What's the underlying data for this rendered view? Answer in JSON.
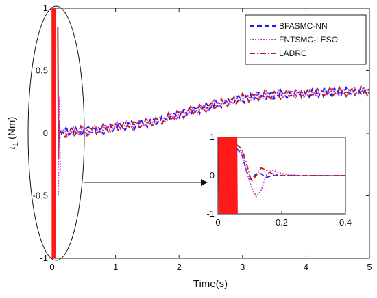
{
  "chart_data": {
    "type": "line",
    "xlabel": "Time(s)",
    "ylabel_main": "τ",
    "ylabel_sub": "1",
    "ylabel_unit": " (Nm)",
    "xlim": [
      0,
      5
    ],
    "ylim": [
      -1,
      1
    ],
    "xticks": [
      "0",
      "1",
      "2",
      "3",
      "4",
      "5"
    ],
    "yticks": [
      "-1",
      "-0.5",
      "0",
      "0.5",
      "1"
    ],
    "legend_position": "top-right",
    "series": [
      {
        "name": "BFASMC-NN",
        "color": "#1a1aff",
        "dash": "dashed",
        "x": [
          0.1,
          0.3,
          0.5,
          0.8,
          1.0,
          1.3,
          1.6,
          2.0,
          2.3,
          2.6,
          3.0,
          3.3,
          3.6,
          4.0,
          4.3,
          4.6,
          5.0
        ],
        "y": [
          0.0,
          0.01,
          0.02,
          0.03,
          0.05,
          0.07,
          0.09,
          0.15,
          0.19,
          0.23,
          0.28,
          0.3,
          0.31,
          0.32,
          0.33,
          0.33,
          0.34
        ]
      },
      {
        "name": "FNTSMC-LESO",
        "color": "#cc33cc",
        "dash": "dotted",
        "x": [
          0.1,
          0.3,
          0.5,
          0.8,
          1.0,
          1.3,
          1.6,
          2.0,
          2.3,
          2.6,
          3.0,
          3.3,
          3.6,
          4.0,
          4.3,
          4.6,
          5.0
        ],
        "y": [
          0.0,
          0.01,
          0.02,
          0.03,
          0.05,
          0.07,
          0.09,
          0.15,
          0.19,
          0.23,
          0.28,
          0.3,
          0.31,
          0.32,
          0.33,
          0.33,
          0.34
        ]
      },
      {
        "name": "LADRC",
        "color": "#b22222",
        "dash": "dashdot",
        "x": [
          0.1,
          0.3,
          0.5,
          0.8,
          1.0,
          1.3,
          1.6,
          2.0,
          2.3,
          2.6,
          3.0,
          3.3,
          3.6,
          4.0,
          4.3,
          4.6,
          5.0
        ],
        "y": [
          0.0,
          0.01,
          0.02,
          0.03,
          0.05,
          0.07,
          0.09,
          0.15,
          0.19,
          0.23,
          0.28,
          0.3,
          0.31,
          0.32,
          0.33,
          0.33,
          0.34
        ]
      }
    ],
    "inset": {
      "xlim": [
        0,
        0.4
      ],
      "ylim": [
        -1,
        1
      ],
      "xticks": [
        "0",
        "0.2",
        "0.4"
      ],
      "yticks": [
        "-1",
        "0",
        "1"
      ],
      "series": [
        {
          "name": "BFASMC-NN",
          "x": [
            0.06,
            0.075,
            0.09,
            0.105,
            0.12,
            0.135,
            0.15,
            0.17,
            0.2,
            0.25,
            0.3,
            0.35,
            0.4
          ],
          "y": [
            0.7,
            0.55,
            0.1,
            -0.1,
            0.05,
            0.05,
            -0.05,
            0.0,
            0.0,
            0.0,
            0.0,
            0.0,
            0.0
          ]
        },
        {
          "name": "FNTSMC-LESO",
          "x": [
            0.06,
            0.075,
            0.09,
            0.105,
            0.12,
            0.135,
            0.15,
            0.17,
            0.2,
            0.25,
            0.3,
            0.35,
            0.4
          ],
          "y": [
            0.8,
            0.6,
            0.1,
            -0.3,
            -0.55,
            -0.4,
            0.0,
            0.15,
            0.05,
            0.0,
            0.0,
            0.0,
            0.0
          ]
        },
        {
          "name": "LADRC",
          "x": [
            0.06,
            0.075,
            0.09,
            0.105,
            0.12,
            0.135,
            0.15,
            0.17,
            0.2,
            0.25,
            0.3,
            0.35,
            0.4
          ],
          "y": [
            0.8,
            0.7,
            0.3,
            -0.15,
            0.0,
            0.2,
            0.15,
            0.05,
            0.0,
            0.0,
            0.0,
            0.0,
            0.0
          ]
        }
      ]
    }
  }
}
